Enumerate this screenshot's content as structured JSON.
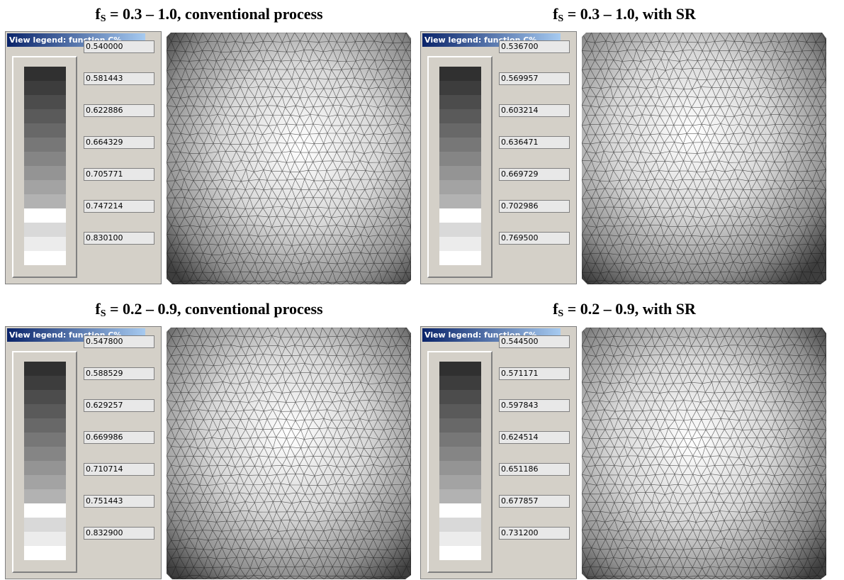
{
  "panels": [
    {
      "title_f": "f",
      "title_sub": "S",
      "title_rest": " = 0.3 – 1.0, conventional process",
      "legend_header": "View legend: function C%",
      "values": [
        "0.540000",
        "0.581443",
        "0.622886",
        "0.664329",
        "0.705771",
        "0.747214",
        "0.830100"
      ],
      "mesh_center": [
        0.55,
        0.45
      ]
    },
    {
      "title_f": "f",
      "title_sub": "S",
      "title_rest": " = 0.3 – 1.0, with SR",
      "legend_header": "View legend: function C%",
      "values": [
        "0.536700",
        "0.569957",
        "0.603214",
        "0.636471",
        "0.669729",
        "0.702986",
        "0.769500"
      ],
      "mesh_center": [
        0.45,
        0.4
      ]
    },
    {
      "title_f": "f",
      "title_sub": "S",
      "title_rest": " = 0.2 – 0.9, conventional process",
      "legend_header": "View legend: function C%",
      "values": [
        "0.547800",
        "0.588529",
        "0.629257",
        "0.669986",
        "0.710714",
        "0.751443",
        "0.832900"
      ],
      "mesh_center": [
        0.5,
        0.42
      ]
    },
    {
      "title_f": "f",
      "title_sub": "S",
      "title_rest": " = 0.2 – 0.9, with SR",
      "legend_header": "View legend: function C%",
      "values": [
        "0.544500",
        "0.571171",
        "0.597843",
        "0.624514",
        "0.651186",
        "0.677857",
        "0.731200"
      ],
      "mesh_center": [
        0.45,
        0.45
      ]
    }
  ],
  "legend_colors": [
    "#303030",
    "#3d3d3d",
    "#4c4c4c",
    "#5a5a5a",
    "#686868",
    "#777777",
    "#858585",
    "#949494",
    "#a3a3a3",
    "#b2b2b2",
    "#ffffff",
    "#d9d9d9",
    "#ececec",
    "#ffffff"
  ]
}
